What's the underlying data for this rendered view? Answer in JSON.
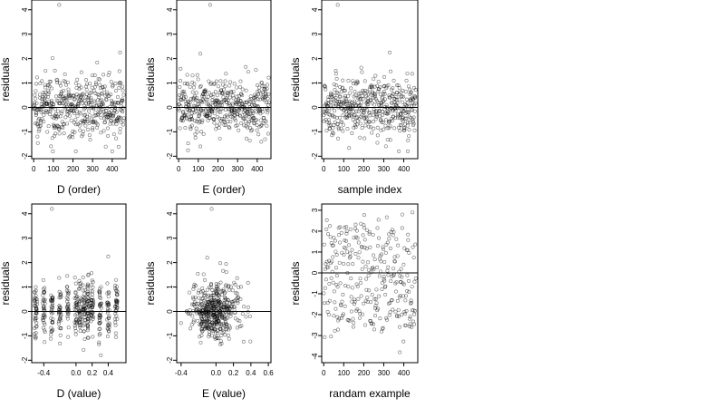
{
  "chart_data": [
    {
      "type": "scatter",
      "xlabel": "D (order)",
      "ylabel": "residuals",
      "xlim": [
        -10,
        470
      ],
      "ylim": [
        -2.1,
        4.4
      ],
      "xticks": [
        0,
        100,
        200,
        300,
        400
      ],
      "xtick_labels": [
        "0",
        "100",
        "200",
        "300",
        "400"
      ],
      "yticks": [
        -2,
        -1,
        0,
        1,
        2,
        3,
        4
      ],
      "ytick_labels": [
        "-2",
        "-1",
        "0",
        "1",
        "2",
        "3",
        "4"
      ],
      "hline": 0,
      "grid": false,
      "n_points": 460,
      "x_range": [
        0,
        460
      ],
      "y_range": [
        -1.8,
        4.2
      ],
      "notable_points": [
        [
          130,
          4.2
        ],
        [
          440,
          2.25
        ],
        [
          60,
          1.5
        ],
        [
          400,
          -1.8
        ]
      ]
    },
    {
      "type": "scatter",
      "xlabel": "E (order)",
      "ylabel": "residuals",
      "xlim": [
        -10,
        470
      ],
      "ylim": [
        -2.1,
        4.4
      ],
      "xticks": [
        0,
        100,
        200,
        300,
        400
      ],
      "xtick_labels": [
        "0",
        "100",
        "200",
        "300",
        "400"
      ],
      "yticks": [
        -2,
        -1,
        0,
        1,
        2,
        3,
        4
      ],
      "ytick_labels": [
        "-2",
        "-1",
        "0",
        "1",
        "2",
        "3",
        "4"
      ],
      "hline": 0,
      "grid": false,
      "n_points": 460,
      "x_range": [
        0,
        460
      ],
      "y_range": [
        -1.8,
        4.2
      ],
      "notable_points": [
        [
          160,
          4.2
        ],
        [
          110,
          2.2
        ],
        [
          440,
          -1.3
        ]
      ]
    },
    {
      "type": "scatter",
      "xlabel": "sample index",
      "ylabel": "residuals",
      "xlim": [
        -10,
        470
      ],
      "ylim": [
        -2.1,
        4.4
      ],
      "xticks": [
        0,
        100,
        200,
        300,
        400
      ],
      "xtick_labels": [
        "0",
        "100",
        "200",
        "300",
        "400"
      ],
      "yticks": [
        -2,
        -1,
        0,
        1,
        2,
        3,
        4
      ],
      "ytick_labels": [
        "-2",
        "-1",
        "0",
        "1",
        "2",
        "3",
        "4"
      ],
      "hline": 0,
      "grid": false,
      "n_points": 460,
      "x_range": [
        0,
        460
      ],
      "y_range": [
        -1.8,
        4.2
      ],
      "notable_points": [
        [
          70,
          4.2
        ],
        [
          330,
          2.25
        ],
        [
          420,
          -1.8
        ]
      ]
    },
    {
      "type": "scatter",
      "xlabel": "D (value)",
      "ylabel": "residuals",
      "xlim": [
        -0.55,
        0.62
      ],
      "ylim": [
        -2.1,
        4.4
      ],
      "xticks": [
        -0.4,
        0.0,
        0.2,
        0.4
      ],
      "xtick_labels": [
        "-0.4",
        "0.0",
        "0.2",
        "0.4"
      ],
      "yticks": [
        -2,
        -1,
        0,
        1,
        2,
        3,
        4
      ],
      "ytick_labels": [
        "-2",
        "-1",
        "0",
        "1",
        "2",
        "3",
        "4"
      ],
      "hline": 0,
      "grid": false,
      "n_points": 460,
      "x_range": [
        -0.5,
        0.55
      ],
      "y_range": [
        -1.8,
        4.2
      ],
      "column_x": [
        -0.5,
        -0.4,
        -0.3,
        -0.2,
        -0.1,
        0.0,
        0.05,
        0.1,
        0.15,
        0.2,
        0.3,
        0.4,
        0.5
      ],
      "notable_points": [
        [
          -0.3,
          4.2
        ],
        [
          0.4,
          2.25
        ]
      ]
    },
    {
      "type": "scatter",
      "xlabel": "E (value)",
      "ylabel": "residuals",
      "xlim": [
        -0.45,
        0.63
      ],
      "ylim": [
        -2.1,
        4.4
      ],
      "xticks": [
        -0.4,
        0.0,
        0.2,
        0.4,
        0.6
      ],
      "xtick_labels": [
        "-0.4",
        "0.0",
        "0.2",
        "0.4",
        "0.6"
      ],
      "yticks": [
        -2,
        -1,
        0,
        1,
        2,
        3,
        4
      ],
      "ytick_labels": [
        "-2",
        "-1",
        "0",
        "1",
        "2",
        "3",
        "4"
      ],
      "hline": 0,
      "grid": false,
      "n_points": 460,
      "x_range": [
        -0.4,
        0.6
      ],
      "y_range": [
        -1.8,
        4.2
      ],
      "notable_points": [
        [
          -0.05,
          4.2
        ],
        [
          -0.1,
          2.2
        ]
      ]
    },
    {
      "type": "scatter",
      "xlabel": "randam example",
      "ylabel": "residuals",
      "xlim": [
        -10,
        470
      ],
      "ylim": [
        -4.3,
        3.3
      ],
      "xticks": [
        0,
        100,
        200,
        300,
        400
      ],
      "xtick_labels": [
        "0",
        "100",
        "200",
        "300",
        "400"
      ],
      "yticks": [
        -4,
        -3,
        -2,
        -1,
        0,
        1,
        2,
        3
      ],
      "ytick_labels": [
        "-4",
        "-3",
        "-2",
        "-1",
        "0",
        "1",
        "2",
        "3"
      ],
      "hline": 0,
      "grid": false,
      "n_points": 300,
      "x_range": [
        0,
        460
      ],
      "y_range": [
        -3.8,
        2.9
      ],
      "notable_points": [
        [
          380,
          -3.8
        ]
      ]
    }
  ]
}
